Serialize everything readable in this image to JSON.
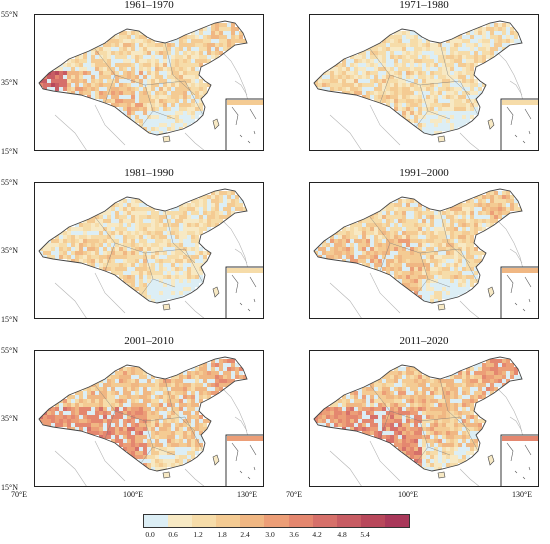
{
  "panels": [
    {
      "title": "1961–1970",
      "intensity": 0.45,
      "hot_west_edge": true
    },
    {
      "title": "1971–1980",
      "intensity": 0.25,
      "hot_west_edge": false
    },
    {
      "title": "1981–1990",
      "intensity": 0.3,
      "hot_west_edge": false
    },
    {
      "title": "1991–2000",
      "intensity": 0.5,
      "hot_west_edge": false
    },
    {
      "title": "2001–2010",
      "intensity": 0.8,
      "hot_west_edge": false
    },
    {
      "title": "2011–2020",
      "intensity": 0.85,
      "hot_west_edge": false
    }
  ],
  "axes": {
    "lat_labels": [
      "55°N",
      "35°N",
      "15°N"
    ],
    "lon_labels": [
      "70°E",
      "100°E",
      "130°E"
    ]
  },
  "legend": {
    "ticks": [
      "0.0",
      "0.6",
      "1.2",
      "1.8",
      "2.4",
      "3.0",
      "3.6",
      "4.2",
      "4.8",
      "5.4"
    ],
    "colors": [
      "#dceef5",
      "#f7e9c4",
      "#f6dca9",
      "#f4cb93",
      "#f0b783",
      "#ec9e77",
      "#e4876f",
      "#d6706a",
      "#c75c63",
      "#b8485b",
      "#a9385a"
    ]
  },
  "colors": {
    "land_outline": "#444444",
    "coast_gray": "#b5b5b5",
    "cold": "#dceef5"
  }
}
